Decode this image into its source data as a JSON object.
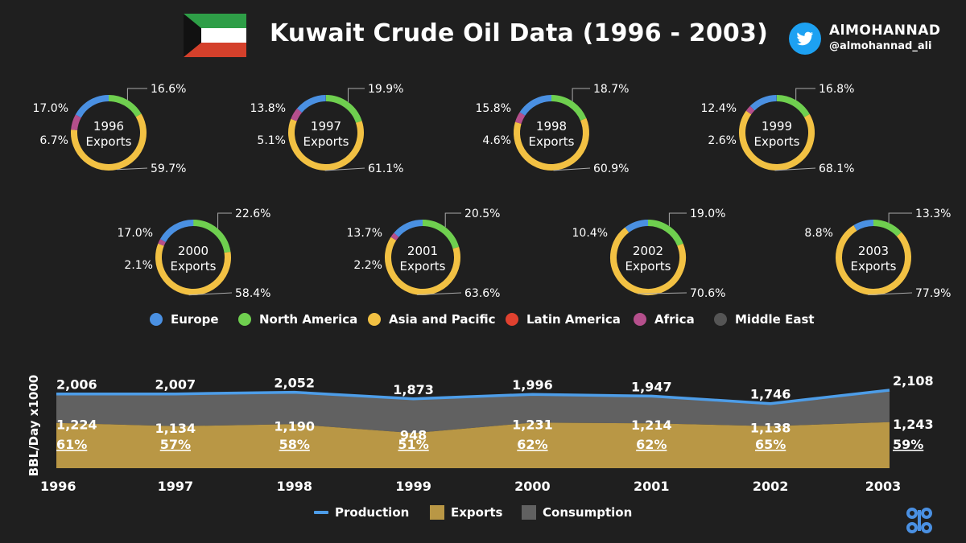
{
  "header": {
    "title": "Kuwait Crude Oil Data (1996 - 2003)",
    "author": "AlMOHANNAD",
    "handle": "@almohannad_ali"
  },
  "colors": {
    "background": "#1f1f1f",
    "europe": "#4a90e2",
    "north_america": "#6fcf4f",
    "asia_pacific": "#f2c143",
    "latin_america": "#e0412f",
    "africa": "#b54f8c",
    "middle_east": "#555555",
    "production_line": "#4d9de8",
    "exports_fill": "#b99745",
    "consumption_fill": "#616161",
    "flag_green": "#2e9e47",
    "flag_red": "#d4402b",
    "twitter": "#1da1f2",
    "opec": "#4a90e2"
  },
  "export_legend": [
    {
      "name": "Europe",
      "color_key": "europe"
    },
    {
      "name": "North America",
      "color_key": "north_america"
    },
    {
      "name": "Asia and Pacific",
      "color_key": "asia_pacific"
    },
    {
      "name": "Latin America",
      "color_key": "latin_america"
    },
    {
      "name": "Africa",
      "color_key": "africa"
    },
    {
      "name": "Middle East",
      "color_key": "middle_east"
    }
  ],
  "export_donuts": [
    {
      "year": "1996",
      "sublabel": "Exports",
      "shares": {
        "north_america": 16.6,
        "asia_pacific": 59.7,
        "africa": 6.7,
        "europe": 17.0
      },
      "labels": {
        "north_america": "16.6%",
        "asia_pacific": "59.7%",
        "africa": "6.7%",
        "europe": "17.0%"
      }
    },
    {
      "year": "1997",
      "sublabel": "Exports",
      "shares": {
        "north_america": 19.9,
        "asia_pacific": 61.1,
        "africa": 5.1,
        "europe": 13.8
      },
      "labels": {
        "north_america": "19.9%",
        "asia_pacific": "61.1%",
        "africa": "5.1%",
        "europe": "13.8%"
      }
    },
    {
      "year": "1998",
      "sublabel": "Exports",
      "shares": {
        "north_america": 18.7,
        "asia_pacific": 60.9,
        "africa": 4.6,
        "europe": 15.8
      },
      "labels": {
        "north_america": "18.7%",
        "asia_pacific": "60.9%",
        "africa": "4.6%",
        "europe": "15.8%"
      }
    },
    {
      "year": "1999",
      "sublabel": "Exports",
      "shares": {
        "north_america": 16.8,
        "asia_pacific": 68.1,
        "africa": 2.6,
        "europe": 12.4
      },
      "labels": {
        "north_america": "16.8%",
        "asia_pacific": "68.1%",
        "africa": "2.6%",
        "europe": "12.4%"
      }
    },
    {
      "year": "2000",
      "sublabel": "Exports",
      "shares": {
        "north_america": 22.6,
        "asia_pacific": 58.4,
        "africa": 2.1,
        "europe": 17.0
      },
      "labels": {
        "north_america": "22.6%",
        "asia_pacific": "58.4%",
        "africa": "2.1%",
        "europe": "17.0%"
      }
    },
    {
      "year": "2001",
      "sublabel": "Exports",
      "shares": {
        "north_america": 20.5,
        "asia_pacific": 63.6,
        "africa": 2.2,
        "europe": 13.7
      },
      "labels": {
        "north_america": "20.5%",
        "asia_pacific": "63.6%",
        "africa": "2.2%",
        "europe": "13.7%"
      }
    },
    {
      "year": "2002",
      "sublabel": "Exports",
      "shares": {
        "north_america": 19.0,
        "asia_pacific": 70.6,
        "africa": 0,
        "europe": 10.4
      },
      "labels": {
        "north_america": "19.0%",
        "asia_pacific": "70.6%",
        "europe": "10.4%"
      }
    },
    {
      "year": "2003",
      "sublabel": "Exports",
      "shares": {
        "north_america": 13.3,
        "asia_pacific": 77.9,
        "africa": 0,
        "europe": 8.8
      },
      "labels": {
        "north_america": "13.3%",
        "asia_pacific": "77.9%",
        "europe": "8.8%"
      }
    }
  ],
  "chart_data": {
    "type": "area",
    "x": [
      "1996",
      "1997",
      "1998",
      "1999",
      "2000",
      "2001",
      "2002",
      "2003"
    ],
    "ylabel": "BBL/Day x1000",
    "ylim": [
      0,
      2200
    ],
    "series": [
      {
        "name": "Production",
        "kind": "line",
        "values": [
          2006,
          2007,
          2052,
          1873,
          1996,
          1947,
          1746,
          2108
        ],
        "labels": [
          "2,006",
          "2,007",
          "2,052",
          "1,873",
          "1,996",
          "1,947",
          "1,746",
          "2,108"
        ]
      },
      {
        "name": "Exports",
        "kind": "area",
        "values": [
          1224,
          1134,
          1190,
          948,
          1231,
          1214,
          1138,
          1243
        ],
        "labels": [
          "1,224",
          "1,134",
          "1,190",
          "948",
          "1,231",
          "1,214",
          "1,138",
          "1,243"
        ]
      },
      {
        "name": "Consumption",
        "kind": "area",
        "values": [
          782,
          873,
          862,
          925,
          765,
          733,
          608,
          865
        ]
      }
    ],
    "export_share_labels": [
      "61%",
      "57%",
      "58%",
      "51%",
      "62%",
      "62%",
      "65%",
      "59%"
    ],
    "legend": [
      "Production",
      "Exports",
      "Consumption"
    ],
    "legend_position": "bottom",
    "grid": false
  }
}
